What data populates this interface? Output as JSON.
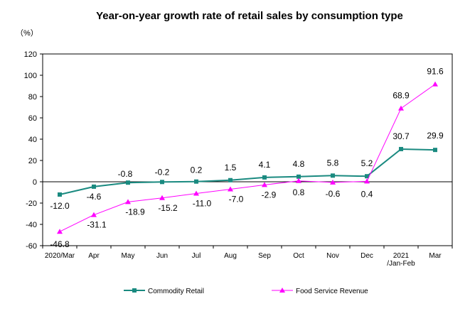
{
  "chart_data": {
    "type": "line",
    "title": "Year-on-year growth rate of retail sales by consumption type",
    "ylabel": "（%）",
    "xlabel": "",
    "ylim": [
      -60,
      120
    ],
    "yticks": [
      120,
      100,
      80,
      60,
      40,
      20,
      0,
      -20,
      -40,
      -60
    ],
    "grid": false,
    "legend_position": "bottom",
    "categories": [
      "2020/Mar",
      "Apr",
      "May",
      "Jun",
      "Jul",
      "Aug",
      "Sep",
      "Oct",
      "Nov",
      "Dec",
      "2021\n/Jan-Feb",
      "Mar"
    ],
    "series": [
      {
        "name": "Commodity Retail",
        "color": "#1a8a80",
        "marker": "square",
        "values": [
          -12.0,
          -4.6,
          -0.8,
          -0.2,
          0.2,
          1.5,
          4.1,
          4.8,
          5.8,
          5.2,
          30.7,
          29.9
        ],
        "labels": [
          "-12.0",
          "-4.6",
          "-0.8",
          "-0.2",
          "0.2",
          "1.5",
          "4.1",
          "4.8",
          "5.8",
          "5.2",
          "30.7",
          "29.9"
        ]
      },
      {
        "name": "Food Service Revenue",
        "color": "#ff00ff",
        "marker": "triangle",
        "values": [
          -46.8,
          -31.1,
          -18.9,
          -15.2,
          -11.0,
          -7.0,
          -2.9,
          0.8,
          -0.6,
          0.4,
          68.9,
          91.6
        ],
        "labels": [
          "-46.8",
          "-31.1",
          "-18.9",
          "-15.2",
          "-11.0",
          "-7.0",
          "-2.9",
          "0.8",
          "-0.6",
          "0.4",
          "68.9",
          "91.6"
        ]
      }
    ]
  }
}
